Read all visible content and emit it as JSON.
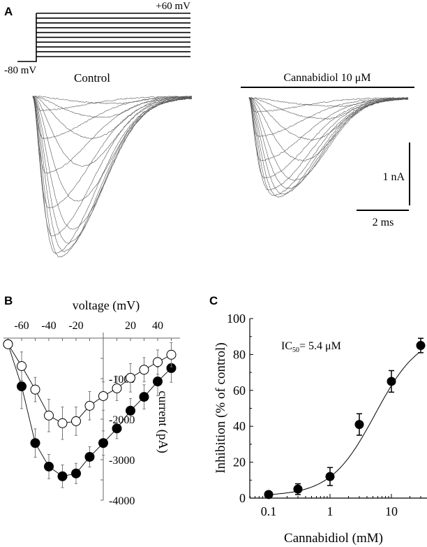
{
  "panels": {
    "a": {
      "label": "A",
      "protocol": {
        "top_label": "+60 mV",
        "holding_label": "-80 mV",
        "steps": 10
      },
      "control_label": "Control",
      "drug_label": "Cannabidiol 10 μM",
      "scale_current": "1 nA",
      "scale_time": "2 ms"
    },
    "b": {
      "label": "B"
    },
    "c": {
      "label": "C"
    }
  },
  "chart_data": [
    {
      "type": "line",
      "panel": "B",
      "xlabel": "voltage (mV)",
      "ylabel": "current (pA)",
      "xlim": [
        -72,
        56
      ],
      "ylim": [
        -4000,
        0
      ],
      "x_ticks": [
        -60,
        -40,
        -20,
        20,
        40
      ],
      "y_ticks": [
        -1000,
        -2000,
        -3000,
        -4000
      ],
      "x_tick_labels": [
        "-60",
        "-40",
        "-20",
        "20",
        "40"
      ],
      "y_tick_labels": [
        "-1000",
        "-2000",
        "-3000",
        "-4000"
      ],
      "grid": false,
      "x": [
        -70,
        -60,
        -50,
        -40,
        -30,
        -20,
        -10,
        0,
        10,
        20,
        30,
        40,
        50
      ],
      "series": [
        {
          "marker": "filled-circle",
          "values": [
            -150,
            -1190,
            -2590,
            -3170,
            -3410,
            -3340,
            -2930,
            -2590,
            -2230,
            -1790,
            -1450,
            -1070,
            -740
          ],
          "errors": [
            80,
            550,
            350,
            300,
            280,
            250,
            250,
            300,
            250,
            300,
            300,
            350,
            350
          ]
        },
        {
          "marker": "open-circle",
          "values": [
            -150,
            -690,
            -1270,
            -1910,
            -2100,
            -2050,
            -1670,
            -1430,
            -1240,
            -980,
            -780,
            -590,
            -410
          ],
          "errors": [
            80,
            350,
            300,
            400,
            400,
            350,
            350,
            350,
            300,
            350,
            300,
            300,
            300
          ]
        }
      ]
    },
    {
      "type": "scatter",
      "panel": "C",
      "xlabel": "Cannabidiol (mM)",
      "ylabel": "Inhibition (% of control)",
      "x_scale": "log",
      "xlim": [
        0.05,
        40
      ],
      "ylim": [
        0,
        100
      ],
      "x_tick_labels": [
        "0.1",
        "1",
        "10"
      ],
      "x_ticks": [
        0.1,
        1,
        10
      ],
      "y_ticks": [
        0,
        20,
        40,
        60,
        80,
        100
      ],
      "y_tick_labels": [
        "0",
        "20",
        "40",
        "60",
        "80",
        "100"
      ],
      "grid": false,
      "annotation": {
        "prefix": "IC",
        "subscript": "50",
        "text": "= 5.4 μM"
      },
      "x": [
        0.1,
        0.3,
        1,
        3,
        10,
        30
      ],
      "values": [
        2,
        5,
        12,
        41,
        65,
        85
      ],
      "errors": [
        1.5,
        3,
        5,
        6,
        6,
        4
      ],
      "fit": "sigmoid"
    }
  ]
}
